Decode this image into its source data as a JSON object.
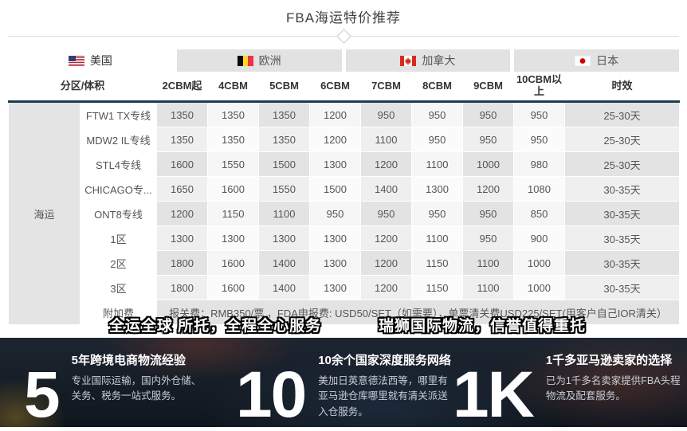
{
  "page": {
    "title": "FBA海运特价推荐"
  },
  "tabs": [
    {
      "label": "美国",
      "active": true
    },
    {
      "label": "欧洲",
      "active": false
    },
    {
      "label": "加拿大",
      "active": false
    },
    {
      "label": "日本",
      "active": false
    }
  ],
  "chart_data": {
    "type": "table",
    "title": "FBA海运特价推荐",
    "group_label": "海运",
    "corner_header": "分区/体积",
    "columns": [
      "2CBM起",
      "4CBM",
      "5CBM",
      "6CBM",
      "7CBM",
      "8CBM",
      "9CBM",
      "10CBM以上",
      "时效"
    ],
    "rows": [
      {
        "label": "FTW1 TX专线",
        "values": [
          "1350",
          "1350",
          "1350",
          "1200",
          "950",
          "950",
          "950",
          "950",
          "25-30天"
        ]
      },
      {
        "label": "MDW2 IL专线",
        "values": [
          "1350",
          "1350",
          "1350",
          "1200",
          "1100",
          "950",
          "950",
          "950",
          "25-30天"
        ]
      },
      {
        "label": "STL4专线",
        "values": [
          "1600",
          "1550",
          "1500",
          "1300",
          "1200",
          "1100",
          "1000",
          "980",
          "25-30天"
        ]
      },
      {
        "label": "CHICAGO专...",
        "values": [
          "1650",
          "1600",
          "1550",
          "1500",
          "1400",
          "1300",
          "1200",
          "1080",
          "30-35天"
        ]
      },
      {
        "label": "ONT8专线",
        "values": [
          "1200",
          "1150",
          "1100",
          "950",
          "950",
          "950",
          "950",
          "850",
          "30-35天"
        ]
      },
      {
        "label": "1区",
        "values": [
          "1300",
          "1300",
          "1300",
          "1300",
          "1200",
          "1100",
          "950",
          "900",
          "30-35天"
        ]
      },
      {
        "label": "2区",
        "values": [
          "1800",
          "1600",
          "1400",
          "1300",
          "1200",
          "1150",
          "1100",
          "1000",
          "30-35天"
        ]
      },
      {
        "label": "3区",
        "values": [
          "1800",
          "1600",
          "1400",
          "1300",
          "1200",
          "1150",
          "1100",
          "1000",
          "30-35天"
        ]
      }
    ],
    "surcharge_row": {
      "label": "附加费",
      "text": "报关费：RMB350/票 ，FDA申报费: USD50/SET（如需要），单票清关费USD225/SET(用客户自己IOR清关）"
    }
  },
  "banners": [
    {
      "text": "全运全球 所托，全程全心服务"
    },
    {
      "text": "瑞狮国际物流，信誉值得重托"
    }
  ],
  "stats": [
    {
      "number": "5",
      "title": "5年跨境电商物流经验",
      "desc": "专业国际运输，国内外仓储、关务、税务一站式服务。"
    },
    {
      "number": "10",
      "title": "10余个国家深度服务网络",
      "desc": "美加日英意德法西等，哪里有亚马逊仓库哪里就有清关派送入仓服务。"
    },
    {
      "number": "1K",
      "title": "1千多亚马逊卖家的选择",
      "desc": "已为1千多名卖家提供FBA头程物流及配套服务。"
    }
  ],
  "colors": {
    "header_rule": "#1d3d4f",
    "tab_inactive_bg": "#e2e2e2",
    "cell_dark": "#e3e3e3",
    "hero_bg": "#141b24"
  }
}
